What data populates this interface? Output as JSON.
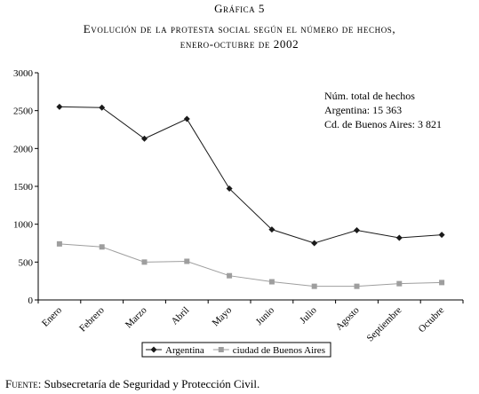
{
  "figure_label": "Gráfica 5",
  "title_line1": "Evolución de la protesta social según el número de hechos,",
  "title_line2": "enero-octubre de 2002",
  "annotation": {
    "line1": "Núm. total de hechos",
    "line2": "Argentina: 15 363",
    "line3": "Cd. de Buenos Aires: 3 821"
  },
  "source": {
    "label": "Fuente:",
    "text": " Subsecretaría de Seguridad y Protección Civil."
  },
  "colors": {
    "argentina": "#1a1a1a",
    "buenos_aires": "#9e9e9e",
    "axis": "#000000"
  },
  "chart_data": {
    "type": "line",
    "categories": [
      "Enero",
      "Febrero",
      "Marzo",
      "Abril",
      "Mayo",
      "Junio",
      "Julio",
      "Agosto",
      "Septiembre",
      "Octubre"
    ],
    "series": [
      {
        "name": "Argentina",
        "marker": "diamond",
        "values": [
          2550,
          2540,
          2130,
          2390,
          1470,
          930,
          750,
          920,
          820,
          860
        ]
      },
      {
        "name": "ciudad de Buenos Aires",
        "marker": "square",
        "values": [
          740,
          700,
          500,
          510,
          320,
          240,
          180,
          180,
          215,
          230
        ]
      }
    ],
    "yticks": [
      0,
      500,
      1000,
      1500,
      2000,
      2500,
      3000
    ],
    "ylim": [
      0,
      3000
    ],
    "grid": false,
    "legend_position": "bottom"
  }
}
